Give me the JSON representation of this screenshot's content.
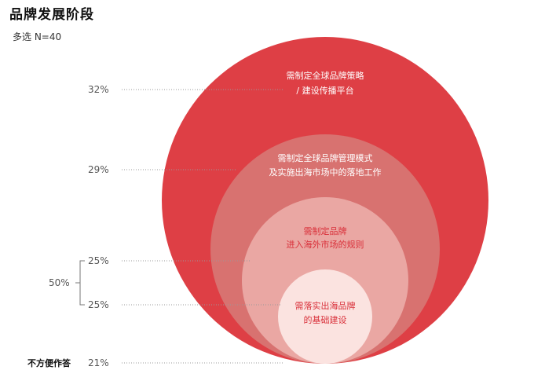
{
  "title": "品牌发展阶段",
  "subtitle": "多选  N=40",
  "colors": {
    "outer": "#de3f45",
    "second": "#d87270",
    "third": "#eaa7a3",
    "inner": "#fbe3e0"
  },
  "chart_data": {
    "type": "nested-circle",
    "title": "品牌发展阶段",
    "subtitle": "多选  N=40",
    "stages": [
      {
        "label_lines": [
          "需制定全球品牌策略",
          "/ 建设传播平台"
        ],
        "value_label": "32%",
        "value": 32
      },
      {
        "label_lines": [
          "需制定全球品牌管理模式",
          "及实施出海市场中的落地工作"
        ],
        "value_label": "29%",
        "value": 29
      },
      {
        "label_lines": [
          "需制定品牌",
          "进入海外市场的规则"
        ],
        "value_label": "25%",
        "value": 25
      },
      {
        "label_lines": [
          "需落实出海品牌",
          "的基础建设"
        ],
        "value_label": "25%",
        "value": 25
      }
    ],
    "group_bracket": {
      "value_label": "50%",
      "value": 50
    },
    "no_answer": {
      "label": "不方便作答",
      "value_label": "21%",
      "value": 21
    }
  }
}
